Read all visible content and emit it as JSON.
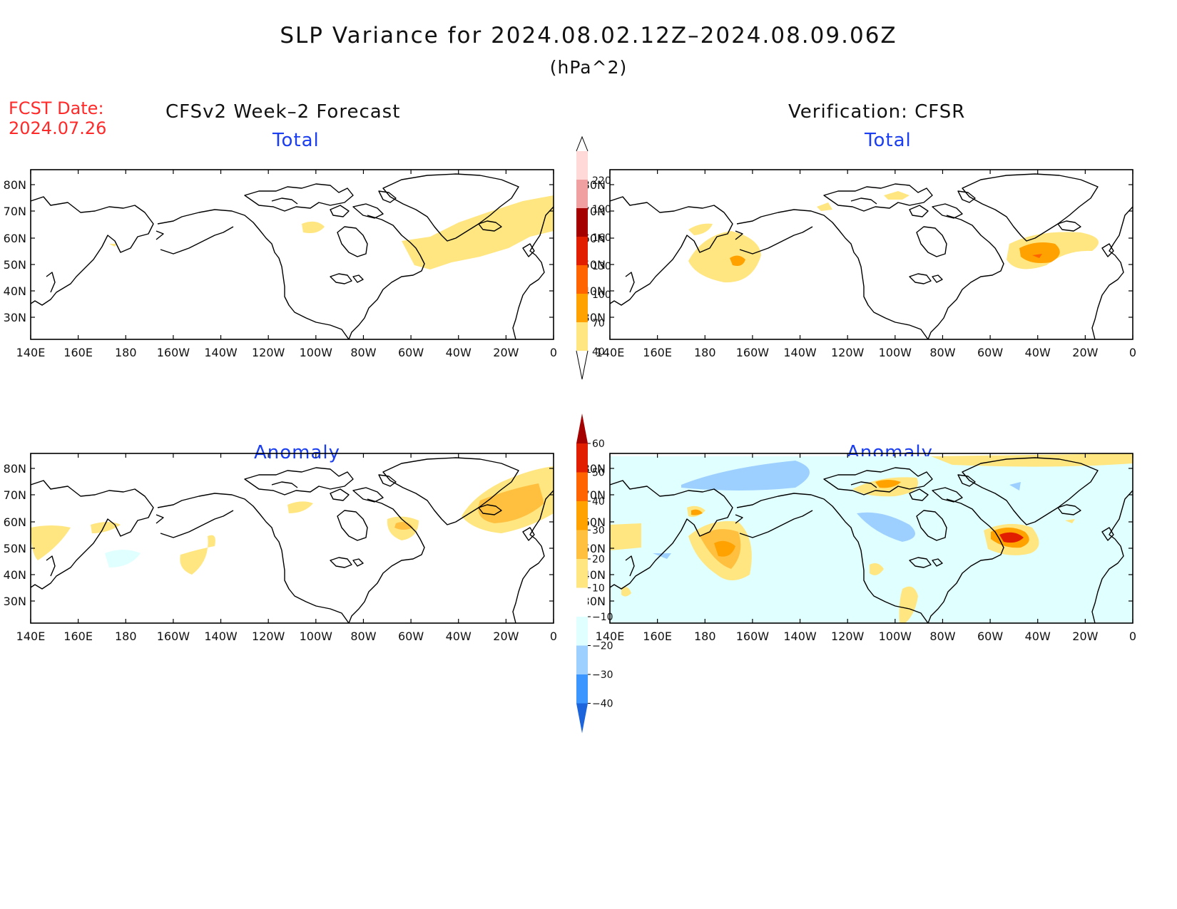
{
  "title": "SLP Variance for 2024.08.02.12Z–2024.08.09.06Z",
  "units": "(hPa^2)",
  "fcst_label": "FCST Date:",
  "fcst_date": "2024.07.26",
  "forecast_heading": "CFSv2 Week–2 Forecast",
  "verification_heading": "Verification: CFSR",
  "panel_titles": {
    "total": "Total",
    "anomaly": "Anomaly"
  },
  "lon_labels": [
    "140E",
    "160E",
    "180",
    "160W",
    "140W",
    "120W",
    "100W",
    "80W",
    "60W",
    "40W",
    "20W",
    "0"
  ],
  "lat_labels": [
    "80N",
    "70N",
    "60N",
    "50N",
    "40N",
    "30N"
  ],
  "total_colorbar": {
    "levels": [
      "40",
      "70",
      "100",
      "130",
      "160",
      "190",
      "220"
    ],
    "colors": [
      "#ffe680",
      "#ffa200",
      "#ff6400",
      "#e11e00",
      "#a50000",
      "#f0a0a0",
      "#ffd8d8"
    ]
  },
  "anomaly_colorbar": {
    "levels": [
      "60",
      "50",
      "40",
      "30",
      "20",
      "10",
      "−10",
      "−20",
      "−30",
      "−40"
    ],
    "colors": [
      "#a50000",
      "#e11e00",
      "#ff6400",
      "#ffa200",
      "#ffc040",
      "#ffe680",
      "#ffffff",
      "#e0ffff",
      "#9ed0ff",
      "#3c96ff",
      "#1c64dc"
    ]
  },
  "colors": {
    "title": "#111111",
    "fcst_date": "#ff2a2a",
    "panel_title": "#1a3ef0",
    "coast": "#000000"
  }
}
